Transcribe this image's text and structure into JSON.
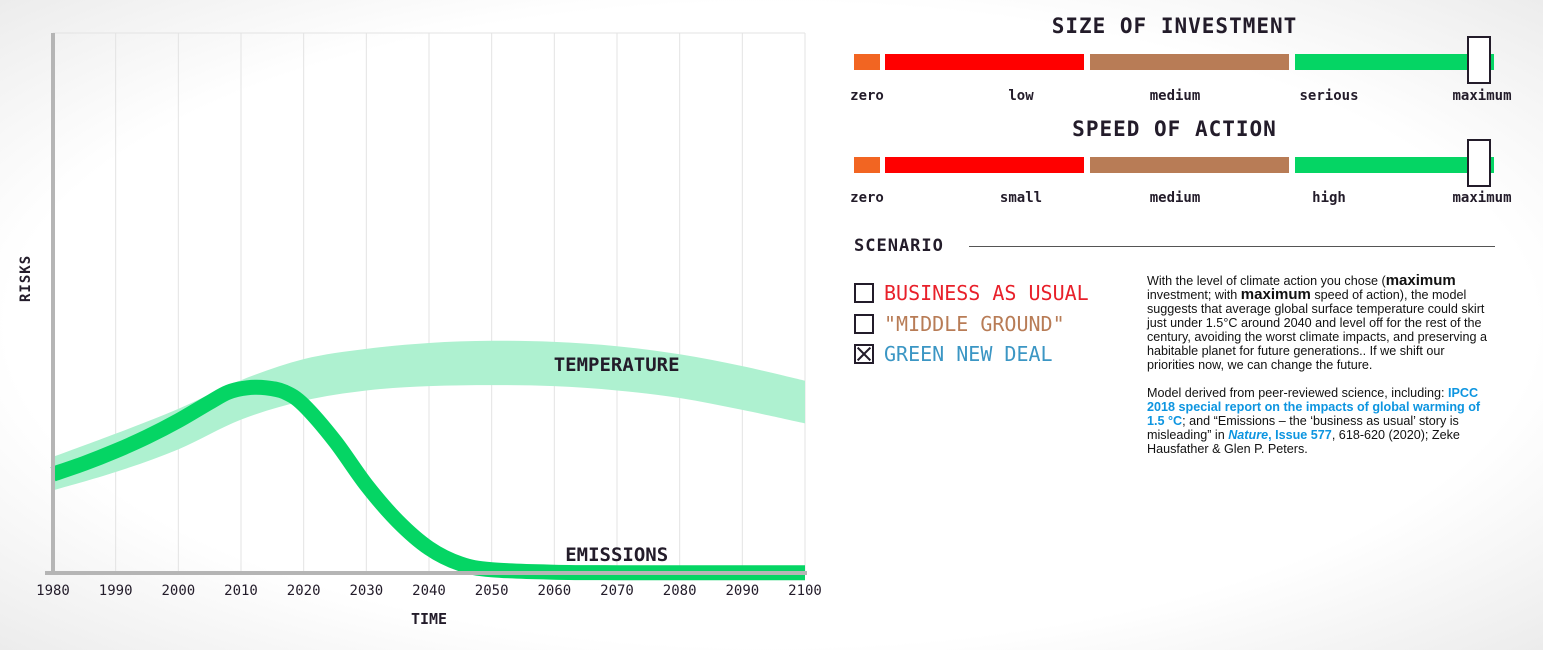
{
  "chart_data": {
    "type": "line",
    "xlabel": "TIME",
    "ylabel": "RISKS",
    "xlim": [
      1980,
      2100
    ],
    "ylim": [
      0,
      100
    ],
    "x_ticks": [
      "1980",
      "1990",
      "2000",
      "2010",
      "2020",
      "2030",
      "2040",
      "2050",
      "2060",
      "2070",
      "2080",
      "2090",
      "2100"
    ],
    "grid": true,
    "series": [
      {
        "name": "TEMPERATURE",
        "style": "band",
        "color": "#aef1d0",
        "x": [
          1980,
          1990,
          2000,
          2010,
          2020,
          2030,
          2040,
          2050,
          2060,
          2070,
          2080,
          2090,
          2100
        ],
        "upper": [
          21.5,
          25.8,
          30.4,
          35.7,
          39.6,
          41.5,
          42.6,
          43.0,
          42.8,
          42.0,
          40.5,
          38.3,
          35.6
        ],
        "lower": [
          15.3,
          18.7,
          22.9,
          28.4,
          31.9,
          33.8,
          34.6,
          34.8,
          34.6,
          33.8,
          32.4,
          30.2,
          27.7
        ]
      },
      {
        "name": "EMISSIONS",
        "style": "line",
        "color": "#05d564",
        "x": [
          1980,
          1985,
          1990,
          1995,
          2000,
          2005,
          2008,
          2011,
          2014,
          2017,
          2020,
          2025,
          2030,
          2035,
          2040,
          2045,
          2050,
          2060,
          2070,
          2080,
          2090,
          2100
        ],
        "y": [
          18.3,
          20.3,
          22.6,
          25.2,
          28.2,
          31.6,
          33.5,
          34.3,
          34.3,
          33.5,
          31.1,
          24.4,
          16.3,
          9.6,
          4.6,
          1.7,
          0.6,
          0.15,
          0.05,
          0.05,
          0.05,
          0.05
        ]
      }
    ],
    "annotations": [
      {
        "text": "TEMPERATURE",
        "x": 2050,
        "y": 38
      },
      {
        "text": "EMISSIONS",
        "x": 2050,
        "y": 3
      }
    ]
  },
  "investment": {
    "title": "SIZE OF INVESTMENT",
    "labels": [
      "zero",
      "low",
      "medium",
      "serious",
      "maximum"
    ],
    "selected": "maximum"
  },
  "speed": {
    "title": "SPEED OF ACTION",
    "labels": [
      "zero",
      "small",
      "medium",
      "high",
      "maximum"
    ],
    "selected": "maximum"
  },
  "slider_colors": [
    "#f26522",
    "#ff0000",
    "#b87c56",
    "#05d564"
  ],
  "scenario": {
    "title": "SCENARIO",
    "options": [
      {
        "label": "BUSINESS AS USUAL",
        "color": "#e8202a",
        "checked": false
      },
      {
        "label": "\"MIDDLE GROUND\"",
        "color": "#b87c56",
        "checked": false
      },
      {
        "label": "GREEN NEW DEAL",
        "color": "#3b96c4",
        "checked": true
      }
    ]
  },
  "description": {
    "p1_a": "With the level of climate action you chose (",
    "p1_b": "maximum",
    "p1_c": " investment; with ",
    "p1_d": "maximum",
    "p1_e": " speed of action), the model suggests that average global surface temperature could skirt just under 1.5°C around 2040 and level off for the rest of the century, avoiding the worst climate impacts, and preserving a habitable planet for future generations.. If we shift our priorities now, we can change the future.",
    "p2_a": "Model derived from peer-reviewed science, including: ",
    "p2_link1": "IPCC 2018 special report on the impacts of global warming of 1.5 °C",
    "p2_b": "; and “Emissions – the ‘business as usual’ story is misleading” in ",
    "p2_link2_i": "Nature",
    "p2_link2": ", Issue 577",
    "p2_c": ", 618-620 (2020); Zeke Hausfather & Glen P. Peters."
  }
}
